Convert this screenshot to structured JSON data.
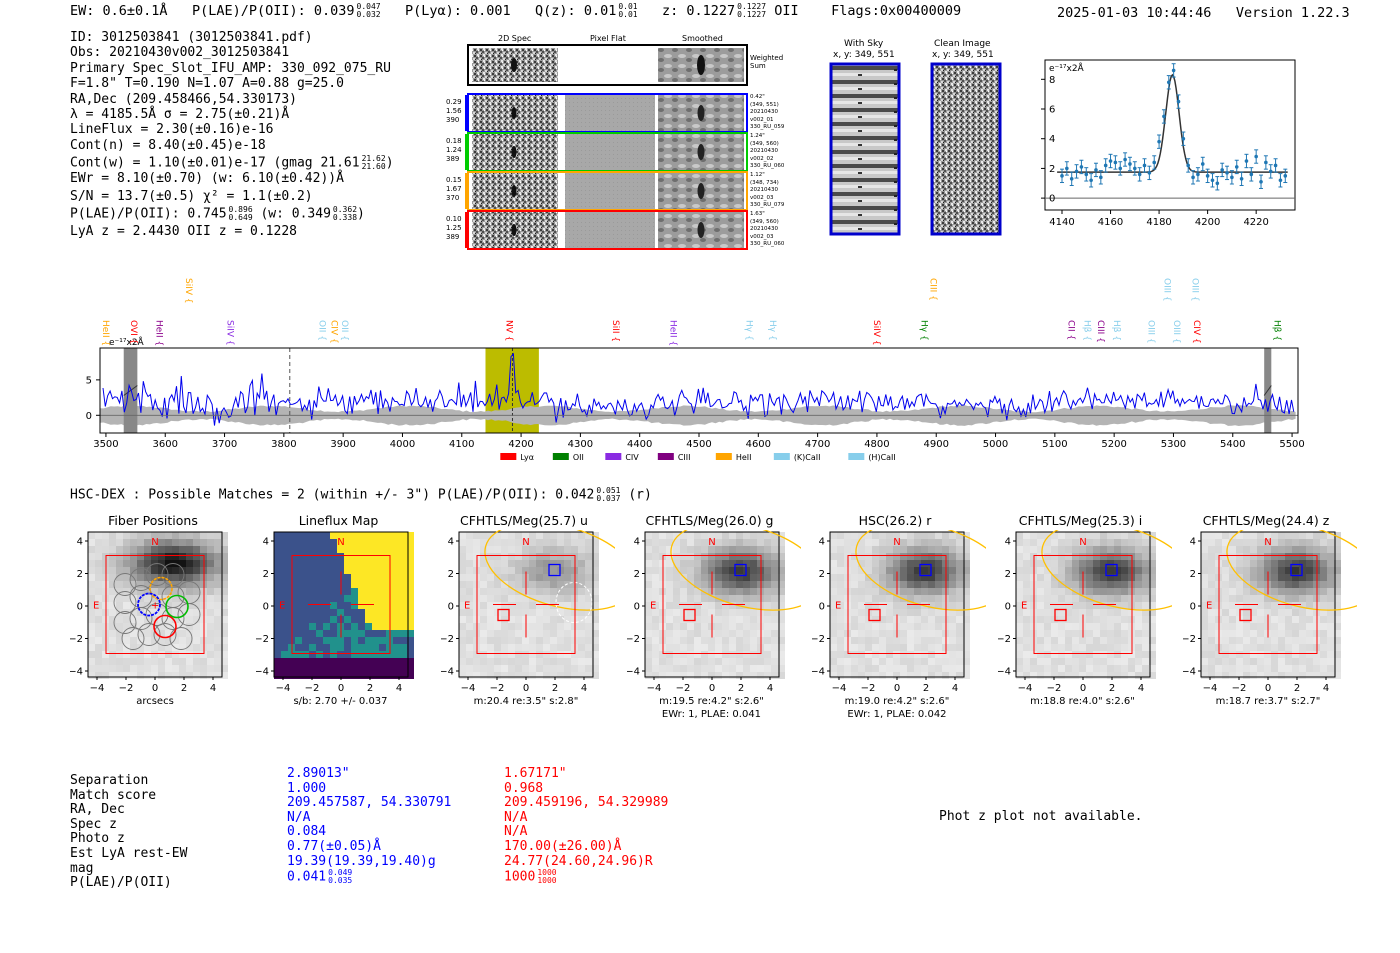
{
  "header": {
    "ew": "EW: 0.6±0.1Å",
    "plae_label": "P(LAE)/P(OII): 0.039",
    "plae_hi": "0.047",
    "plae_lo": "0.032",
    "plya": "P(Lyα): 0.001",
    "qz_label": "Q(z): 0.01",
    "qz_hi": "0.01",
    "qz_lo": "0.01",
    "z_label": "z: 0.1227",
    "z_hi": "0.1227",
    "z_lo": "0.1227",
    "z_line": "OII",
    "flags": "Flags:0x00400009",
    "timestamp": "2025-01-03 10:44:46",
    "version": "Version 1.22.3"
  },
  "info": {
    "id": "ID: 3012503841 (3012503841.pdf)",
    "obs": "Obs: 20210430v002_3012503841",
    "primary": "Primary Spec_Slot_IFU_AMP: 330_092_075_RU",
    "fiber": "F=1.8\"  T=0.190  N=1.07  A=0.88  g=25.0",
    "radec": "RA,Dec (209.458466,54.330173)",
    "lambda": "λ = 4185.5Å   σ = 2.75(±0.21)Å",
    "lineflux": "LineFlux = 2.30(±0.16)e-16",
    "contn": "Cont(n) = 8.40(±0.45)e-18",
    "contw": "Cont(w) = 1.10(±0.01)e-17 (gmag 21.61",
    "contw_hi": "21.62",
    "contw_lo": "21.60",
    "ewr": "EWr = 8.10(±0.70) (w: 6.10(±0.42))Å",
    "sn": "S/N = 13.7(±0.5)  χ² = 1.1(±0.2)",
    "plae": "P(LAE)/P(OII): 0.745",
    "plae_hi": "0.896",
    "plae_lo": "0.649",
    "plae_w": "(w: 0.349",
    "plae_w_hi": "0.362",
    "plae_w_lo": "0.338",
    "lyaz": "LyA z = 2.4430   OII z = 0.1228"
  },
  "spec2d": {
    "col_titles": [
      "2D Spec",
      "Pixel Flat",
      "Smoothed"
    ],
    "weighted_sum": "Weighted Sum",
    "rows": [
      {
        "left": [
          "0.29",
          "1.56",
          "390"
        ],
        "right": [
          "0.42\"",
          "(349, 551)",
          "20210430",
          "v002_01",
          "330_RU_059"
        ],
        "color": "#0000ff"
      },
      {
        "left": [
          "0.18",
          "1.24",
          "389"
        ],
        "right": [
          "1.24\"",
          "(349, 560)",
          "20210430",
          "v002_02",
          "330_RU_060"
        ],
        "color": "#00cc00"
      },
      {
        "left": [
          "0.15",
          "1.67",
          "370"
        ],
        "right": [
          "1.12\"",
          "(348, 734)",
          "20210430",
          "v002_03",
          "330_RU_079"
        ],
        "color": "#ffa500"
      },
      {
        "left": [
          "0.10",
          "1.25",
          "389"
        ],
        "right": [
          "1.63\"",
          "(349, 560)",
          "20210430",
          "v002_03",
          "330_RU_060"
        ],
        "color": "#ff0000"
      }
    ]
  },
  "sky": {
    "with_sky_title": "With Sky",
    "with_sky_coords": "x, y: 349, 551",
    "clean_title": "Clean Image",
    "clean_coords": "x, y: 349, 551"
  },
  "zoom_plot": {
    "ylabel": "e⁻¹⁷x2Å",
    "xticks": [
      "4140",
      "4160",
      "4180",
      "4200",
      "4220"
    ],
    "yticks": [
      "0",
      "2",
      "4",
      "6",
      "8"
    ],
    "x": [
      4140,
      4142,
      4144,
      4146,
      4148,
      4150,
      4152,
      4154,
      4156,
      4158,
      4160,
      4162,
      4164,
      4166,
      4168,
      4170,
      4172,
      4174,
      4176,
      4178,
      4180,
      4182,
      4184,
      4186,
      4188,
      4190,
      4192,
      4194,
      4196,
      4198,
      4200,
      4202,
      4204,
      4206,
      4208,
      4210,
      4212,
      4214,
      4216,
      4218,
      4220,
      4222,
      4224,
      4226,
      4228,
      4230,
      4232
    ],
    "y": [
      1.5,
      2.0,
      1.3,
      1.8,
      2.1,
      1.6,
      1.2,
      1.9,
      1.4,
      2.2,
      2.5,
      2.4,
      2.0,
      2.6,
      2.3,
      2.0,
      1.6,
      2.2,
      1.7,
      2.4,
      3.8,
      5.5,
      7.8,
      8.6,
      6.5,
      4.0,
      2.2,
      1.4,
      1.6,
      2.3,
      1.5,
      1.2,
      1.0,
      1.9,
      1.7,
      1.4,
      2.1,
      1.3,
      2.5,
      1.6,
      2.8,
      1.1,
      2.4,
      1.8,
      2.2,
      1.2,
      1.5
    ],
    "fit_peak": 8.3,
    "fit_center": 4185.5,
    "fit_sigma": 2.75,
    "fit_cont": 1.75,
    "xlim": [
      4133,
      4236
    ],
    "ylim": [
      -0.8,
      9.3
    ]
  },
  "spectrum": {
    "ylabel": "e⁻¹⁷x2Å",
    "xticks": [
      "3500",
      "3600",
      "3700",
      "3800",
      "3900",
      "4000",
      "4100",
      "4200",
      "4300",
      "4400",
      "4500",
      "4600",
      "4700",
      "4800",
      "4900",
      "5000",
      "5100",
      "5200",
      "5300",
      "5400",
      "5500"
    ],
    "yticks": [
      "0",
      "5"
    ],
    "xlim": [
      3490,
      5510
    ],
    "ylim": [
      -2.5,
      9.5
    ],
    "lines_top": [
      {
        "label": "SiIV",
        "wave": 3630,
        "color": "#ffa500"
      },
      {
        "label": "CIII",
        "wave": 4885,
        "color": "#ffa500"
      },
      {
        "label": "OIII",
        "wave": 5280,
        "color": "#87ceeb"
      },
      {
        "label": "OIII",
        "wave": 5327,
        "color": "#87ceeb"
      }
    ],
    "lines_mid": [
      {
        "label": "OVI",
        "wave": 3537,
        "color": "#ff0000"
      },
      {
        "label": "HeII",
        "wave": 3490,
        "color": "#ffa500"
      },
      {
        "label": "HeII",
        "wave": 3580,
        "color": "#8b008b"
      },
      {
        "label": "SiIV",
        "wave": 3700,
        "color": "#8a2be2"
      },
      {
        "label": "OII",
        "wave": 3855,
        "color": "#87ceeb"
      },
      {
        "label": "CIV",
        "wave": 3875,
        "color": "#ffa500"
      },
      {
        "label": "OII",
        "wave": 3893,
        "color": "#87ceeb"
      },
      {
        "label": "NV",
        "wave": 4170,
        "color": "#ff0000"
      },
      {
        "label": "SiII",
        "wave": 4350,
        "color": "#ff0000"
      },
      {
        "label": "HeII",
        "wave": 4447,
        "color": "#8a2be2"
      },
      {
        "label": "Hγ",
        "wave": 4575,
        "color": "#87ceeb"
      },
      {
        "label": "Hγ",
        "wave": 4615,
        "color": "#87ceeb"
      },
      {
        "label": "SiIV",
        "wave": 4790,
        "color": "#ff0000"
      },
      {
        "label": "Hγ",
        "wave": 4870,
        "color": "#008000"
      },
      {
        "label": "CII",
        "wave": 5118,
        "color": "#8b008b"
      },
      {
        "label": "Hβ",
        "wave": 5145,
        "color": "#87ceeb"
      },
      {
        "label": "CIII",
        "wave": 5168,
        "color": "#8b008b"
      },
      {
        "label": "Hβ",
        "wave": 5195,
        "color": "#87ceeb"
      },
      {
        "label": "OIII",
        "wave": 5253,
        "color": "#87ceeb"
      },
      {
        "label": "OIII",
        "wave": 5296,
        "color": "#87ceeb"
      },
      {
        "label": "CIV",
        "wave": 5330,
        "color": "#ff0000"
      },
      {
        "label": "Hβ",
        "wave": 5465,
        "color": "#008000"
      }
    ],
    "legend": [
      {
        "label": "Lyα",
        "color": "#ff0000"
      },
      {
        "label": "OII",
        "color": "#008000"
      },
      {
        "label": "CIV",
        "color": "#8a2be2"
      },
      {
        "label": "CIII",
        "color": "#800080"
      },
      {
        "label": "HeII",
        "color": "#ffa500"
      },
      {
        "label": "(K)CaII",
        "color": "#87ceeb"
      },
      {
        "label": "(H)CaII",
        "color": "#87ceeb"
      }
    ],
    "highlight_range": [
      4140,
      4230
    ],
    "highlight_center": 4185.5,
    "dashed_wave": 3810,
    "bad_regions": [
      [
        3530,
        3553
      ],
      [
        5453,
        5465
      ]
    ]
  },
  "hsc": {
    "title": "HSC-DEX : Possible Matches = 2 (within +/- 3\")  P(LAE)/P(OII): 0.042",
    "plae_hi": "0.051",
    "plae_lo": "0.037",
    "band": "(r)"
  },
  "cutouts": [
    {
      "title": "Fiber Positions",
      "caption1": "arcsecs",
      "caption2": ""
    },
    {
      "title": "Lineflux Map",
      "caption1": "s/b: 2.70 +/- 0.037",
      "caption2": ""
    },
    {
      "title": "CFHTLS/Meg(25.7) u",
      "caption1": "m:20.4  re:3.5\"  s:2.8\"",
      "caption2": ""
    },
    {
      "title": "CFHTLS/Meg(26.0) g",
      "caption1": "m:19.5  re:4.2\"  s:2.6\"",
      "caption2": "EWr: 1, PLAE: 0.041"
    },
    {
      "title": "HSC(26.2) r",
      "caption1": "m:19.0  re:4.2\"  s:2.6\"",
      "caption2": "EWr: 1, PLAE: 0.042"
    },
    {
      "title": "CFHTLS/Meg(25.3) i",
      "caption1": "m:18.8  re:4.0\"  s:2.6\"",
      "caption2": ""
    },
    {
      "title": "CFHTLS/Meg(24.4) z",
      "caption1": "m:18.7  re:3.7\"  s:2.7\"",
      "caption2": ""
    }
  ],
  "cutout_axes": {
    "ticks": [
      "4",
      "2",
      "0",
      "−2",
      "−4"
    ],
    "xticks": [
      "−4",
      "−2",
      "0",
      "2",
      "4"
    ],
    "north": "N",
    "east": "E"
  },
  "match_table": {
    "labels": [
      "Separation",
      "Match score",
      "RA, Dec",
      "Spec z",
      "Photo z",
      "Est LyA rest-EW",
      "mag",
      "P(LAE)/P(OII)"
    ],
    "blue": [
      "2.89013\"",
      "1.000",
      "209.457587, 54.330791",
      "N/A",
      "0.084",
      "0.77(±0.05)Å",
      "19.39(19.39,19.40)g",
      "0.041"
    ],
    "blue_plae_hi": "0.049",
    "blue_plae_lo": "0.035",
    "red": [
      "1.67171\"",
      "0.968",
      "209.459196, 54.329989",
      "N/A",
      "N/A",
      "170.00(±26.00)Å",
      "24.77(24.60,24.96)R",
      "1000"
    ],
    "red_plae_hi": "1000",
    "red_plae_lo": "1000"
  },
  "photz_message": "Phot z plot not available."
}
